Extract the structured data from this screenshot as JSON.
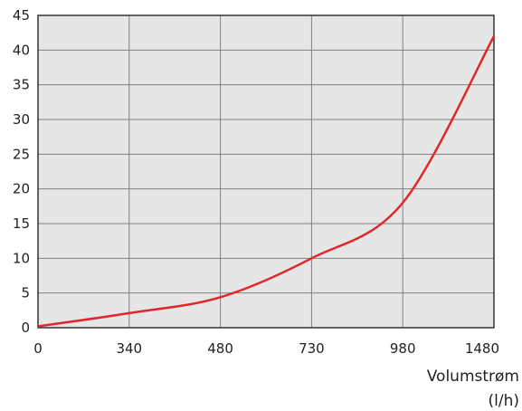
{
  "chart_data": {
    "type": "line",
    "title": "",
    "xlabel": [
      "Volumstrøm",
      "(l/h)"
    ],
    "ylabel": "",
    "x_categories": [
      "0",
      "340",
      "480",
      "730",
      "980",
      "1480"
    ],
    "ylim": [
      0,
      45
    ],
    "y_ticks": [
      0,
      5,
      10,
      15,
      20,
      25,
      30,
      35,
      40,
      45
    ],
    "grid": true,
    "legend": "none",
    "series": [
      {
        "color": "#e3262b",
        "x": [
          0,
          340,
          480,
          730,
          980,
          1480
        ],
        "points": [
          {
            "x": 0,
            "y": 0.2
          },
          {
            "x": 340,
            "y": 2.1
          },
          {
            "x": 480,
            "y": 4.4
          },
          {
            "x": 730,
            "y": 10.0
          },
          {
            "x": 980,
            "y": 18.0
          },
          {
            "x": 1480,
            "y": 42.0
          }
        ]
      }
    ],
    "colors": {
      "plot_background": "#e6e6e6",
      "grid": "#808080",
      "frame": "#333333",
      "line": "#e3262b"
    }
  }
}
